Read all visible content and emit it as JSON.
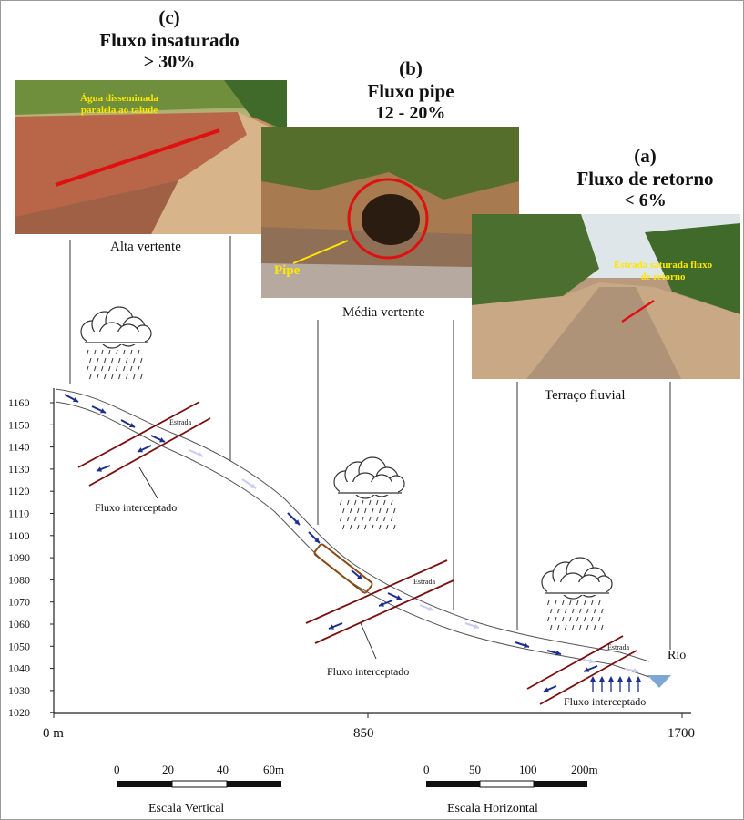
{
  "zones": {
    "c": {
      "tag": "(c)",
      "title": "Fluxo insaturado",
      "pct": "> 30%",
      "photo_caption": "Água disseminada paralela ao talude",
      "location": "Alta vertente"
    },
    "b": {
      "tag": "(b)",
      "title": "Fluxo pipe",
      "pct": "12 - 20%",
      "photo_caption": "Pipe",
      "location": "Média vertente"
    },
    "a": {
      "tag": "(a)",
      "title": "Fluxo de retorno",
      "pct": "< 6%",
      "photo_caption": "Estrada saturada fluxo de retorno",
      "location": "Terraço fluvial"
    }
  },
  "profile": {
    "y_ticks": [
      "1160",
      "1150",
      "1140",
      "1130",
      "1120",
      "1110",
      "1100",
      "1090",
      "1080",
      "1070",
      "1060",
      "1050",
      "1040",
      "1030",
      "1020"
    ],
    "x_ticks": [
      "0 m",
      "850",
      "1700"
    ],
    "road_label": "Estrada",
    "intercept_label": "Fluxo interceptado",
    "river_label": "Rio"
  },
  "scales": {
    "vertical": {
      "label": "Escala Vertical",
      "ticks": [
        "0",
        "20",
        "40",
        "60m"
      ]
    },
    "horizontal": {
      "label": "Escala Horizontal",
      "ticks": [
        "0",
        "50",
        "100",
        "200m"
      ]
    }
  },
  "colors": {
    "road": "#7a1010",
    "flow_dark": "#1c2f8f",
    "flow_light": "#c9cdf2",
    "river": "#7ea7d4",
    "pipe_box": "#8a4a14",
    "annotation_red": "#e01010",
    "annotation_yellow": "#ffe600"
  }
}
